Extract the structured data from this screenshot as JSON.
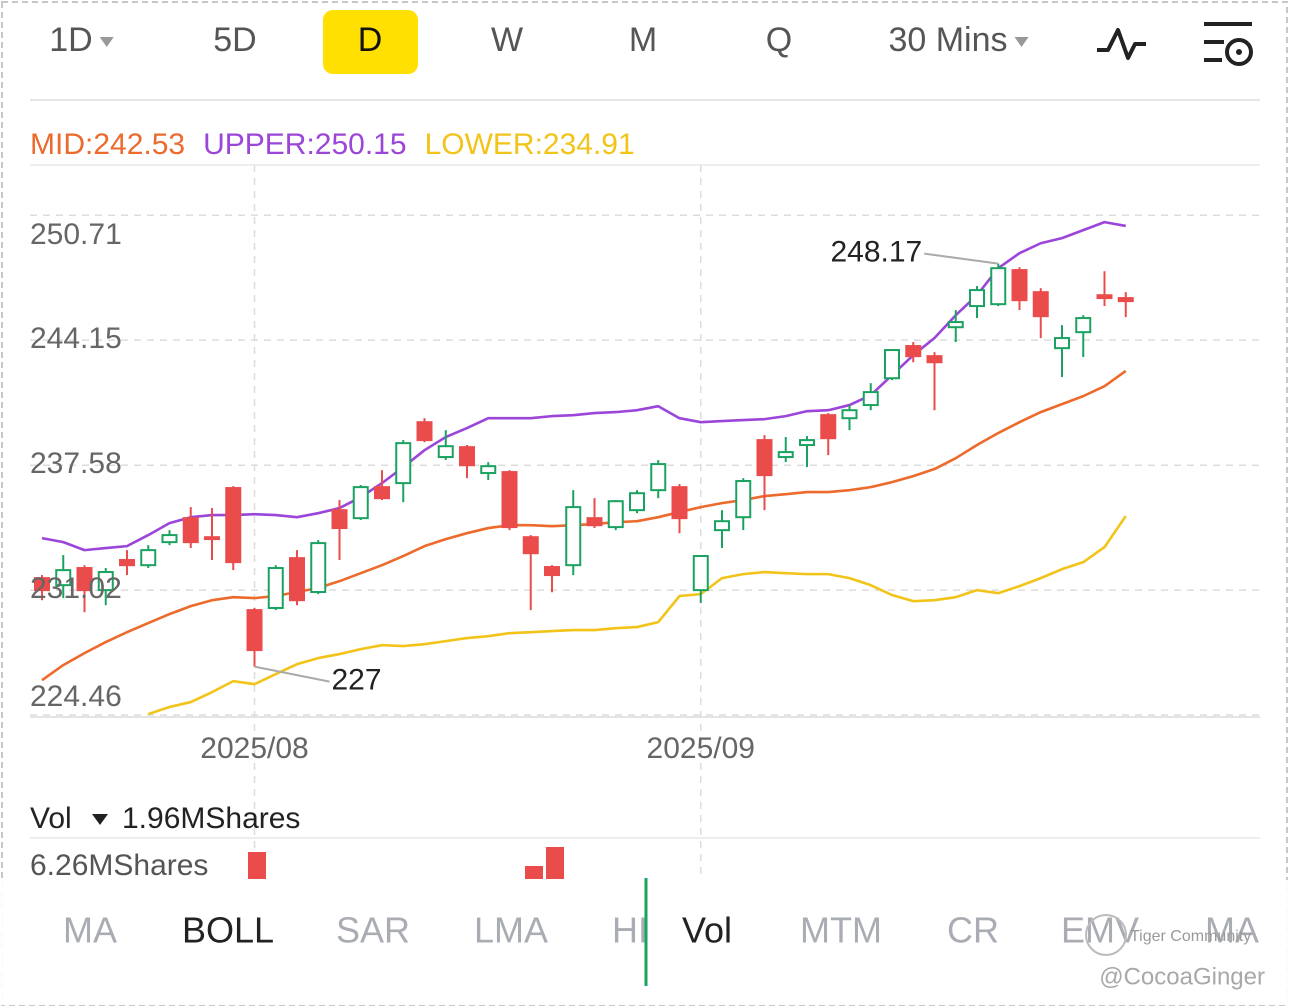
{
  "toolbar": {
    "tabs": [
      "1D",
      "5D",
      "D",
      "W",
      "M",
      "Q",
      "30 Mins"
    ],
    "active": 2
  },
  "chart_data": {
    "type": "candlestick",
    "categories": [
      null,
      null,
      null,
      null,
      null,
      null,
      null,
      null,
      null,
      null,
      "2025/08",
      null,
      null,
      null,
      null,
      null,
      null,
      null,
      null,
      null,
      null,
      null,
      null,
      null,
      null,
      null,
      null,
      null,
      null,
      null,
      null,
      "2025/09",
      null,
      null,
      null,
      null,
      null,
      null,
      null,
      null,
      null,
      null,
      null,
      null,
      null,
      null,
      null,
      null,
      null,
      null,
      null,
      null
    ],
    "open": [
      231.65,
      231.28,
      232.18,
      231.02,
      232.6,
      232.33,
      233.54,
      234.8,
      233.8,
      236.38,
      229.97,
      230.08,
      232.7,
      230.92,
      235.22,
      234.8,
      236.43,
      236.64,
      239.84,
      238.01,
      238.53,
      237.17,
      237.22,
      233.8,
      232.23,
      232.33,
      234.8,
      234.33,
      235.22,
      236.27,
      236.43,
      231.02,
      234.17,
      234.85,
      238.9,
      238.01,
      238.64,
      240.21,
      240.05,
      240.74,
      242.15,
      243.84,
      243.31,
      244.83,
      245.94,
      246.04,
      247.83,
      246.67,
      243.73,
      244.57,
      246.51,
      246.36
    ],
    "high": [
      231.81,
      232.86,
      232.33,
      232.18,
      233.12,
      233.38,
      234.17,
      235.38,
      235.33,
      236.48,
      230.08,
      232.33,
      233.12,
      233.65,
      235.75,
      236.54,
      237.32,
      238.9,
      240.05,
      239.42,
      238.64,
      237.74,
      237.32,
      233.91,
      232.33,
      236.27,
      235.85,
      235.75,
      236.27,
      237.85,
      236.59,
      232.86,
      235.22,
      236.9,
      239.16,
      239.06,
      239.11,
      240.32,
      240.74,
      241.89,
      243.68,
      244.05,
      243.52,
      245.73,
      246.99,
      248.17,
      247.98,
      246.88,
      244.94,
      245.46,
      247.77,
      246.67
    ],
    "low": [
      230.49,
      230.6,
      229.86,
      230.23,
      231.81,
      232.18,
      233.38,
      233.23,
      232.6,
      232.07,
      227.0,
      229.97,
      230.23,
      230.81,
      232.6,
      234.7,
      235.75,
      235.64,
      238.79,
      237.85,
      236.9,
      236.8,
      234.17,
      229.97,
      230.91,
      231.81,
      234.28,
      234.17,
      235.06,
      235.85,
      234.01,
      230.34,
      233.23,
      234.17,
      235.22,
      237.74,
      237.48,
      238.11,
      239.42,
      240.47,
      242.05,
      242.99,
      240.47,
      244.05,
      245.31,
      245.94,
      245.73,
      244.26,
      242.21,
      243.26,
      245.94,
      245.36
    ],
    "close": [
      231.02,
      232.07,
      231.02,
      231.97,
      232.33,
      233.12,
      233.91,
      233.54,
      233.7,
      232.49,
      227.87,
      232.18,
      230.49,
      233.49,
      234.28,
      236.43,
      235.85,
      238.74,
      238.9,
      238.58,
      237.58,
      237.53,
      234.33,
      232.96,
      231.81,
      235.38,
      234.43,
      235.69,
      236.11,
      237.64,
      234.8,
      232.81,
      234.64,
      236.75,
      237.06,
      238.27,
      238.9,
      239.0,
      240.47,
      241.42,
      243.63,
      243.31,
      242.99,
      245.1,
      246.78,
      247.93,
      246.25,
      245.41,
      244.26,
      245.31,
      246.36,
      246.2
    ],
    "up_color": "#1aa260",
    "down_color": "#ea4b4b",
    "series": [
      {
        "name": "MID:",
        "color": "#ec6a2c",
        "values": [
          226.29,
          227.08,
          227.71,
          228.29,
          228.81,
          229.29,
          229.76,
          230.18,
          230.49,
          230.65,
          230.6,
          230.71,
          230.92,
          231.13,
          231.49,
          231.91,
          232.33,
          232.81,
          233.33,
          233.7,
          234.01,
          234.28,
          234.43,
          234.43,
          234.38,
          234.43,
          234.49,
          234.59,
          234.64,
          234.85,
          235.12,
          235.38,
          235.59,
          235.75,
          235.96,
          236.06,
          236.17,
          236.17,
          236.27,
          236.43,
          236.69,
          237.01,
          237.38,
          237.95,
          238.64,
          239.27,
          239.84,
          240.37,
          240.79,
          241.21,
          241.73,
          242.53
        ]
      },
      {
        "name": "UPPER:",
        "color": "#9b45d9",
        "values": [
          233.75,
          233.54,
          233.12,
          233.23,
          233.33,
          233.91,
          234.54,
          234.85,
          234.96,
          234.96,
          235.01,
          234.96,
          234.85,
          235.06,
          235.33,
          235.9,
          236.64,
          237.48,
          238.37,
          239.06,
          239.53,
          240.05,
          240.05,
          240.05,
          240.16,
          240.21,
          240.32,
          240.37,
          240.47,
          240.68,
          240.05,
          239.84,
          239.9,
          239.95,
          240.0,
          240.16,
          240.42,
          240.47,
          240.74,
          241.26,
          242.31,
          243.36,
          244.26,
          245.46,
          246.51,
          247.93,
          248.72,
          249.24,
          249.51,
          249.93,
          250.35,
          250.15
        ]
      },
      {
        "name": "LOWER:",
        "color": "#f2c318",
        "values": [
          null,
          null,
          null,
          null,
          null,
          224.51,
          224.88,
          225.14,
          225.66,
          226.24,
          226.08,
          226.61,
          227.13,
          227.45,
          227.66,
          227.92,
          228.13,
          228.08,
          228.18,
          228.34,
          228.5,
          228.6,
          228.76,
          228.81,
          228.87,
          228.92,
          228.92,
          229.02,
          229.08,
          229.34,
          230.71,
          230.81,
          231.65,
          231.86,
          231.97,
          231.91,
          231.86,
          231.86,
          231.65,
          231.28,
          230.76,
          230.44,
          230.49,
          230.65,
          231.02,
          230.86,
          231.23,
          231.65,
          232.12,
          232.49,
          233.28,
          234.91
        ]
      }
    ],
    "ylim": [
      224.46,
      253.35
    ],
    "yticks": [
      224.46,
      231.02,
      237.58,
      244.15,
      250.71
    ],
    "grid": true,
    "annotations": [
      {
        "index": 45,
        "field": "high"
      },
      {
        "index": 10,
        "field": "low"
      }
    ]
  },
  "volume": {
    "label": "Vol",
    "current": "1.96MShares",
    "axis_top": "6.26MShares"
  },
  "indicators": {
    "tabs": [
      "MA",
      "BOLL",
      "SAR",
      "LMA",
      "HI",
      "Vol",
      "MTM",
      "CR",
      "EMV",
      "MA"
    ],
    "active": [
      1,
      5
    ]
  },
  "watermark": {
    "brand": "Tiger Community",
    "user": "@CocoaGinger"
  }
}
